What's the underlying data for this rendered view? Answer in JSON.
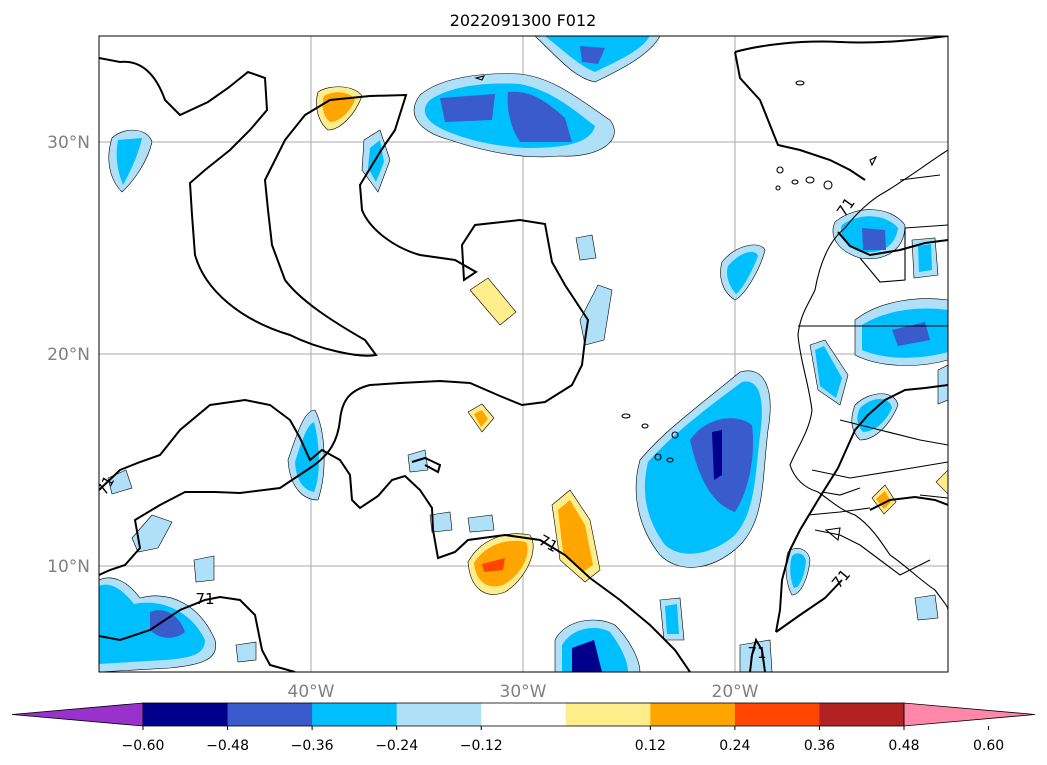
{
  "title": "2022091300 F012",
  "map": {
    "lon_range": [
      -50,
      -10
    ],
    "lat_range": [
      5,
      35
    ],
    "gridlines": true,
    "lat_ticks": [
      {
        "value": 30,
        "label": "30°N"
      },
      {
        "value": 20,
        "label": "20°N"
      },
      {
        "value": 10,
        "label": "10°N"
      }
    ],
    "lon_ticks": [
      {
        "value": -40,
        "label": "40°W"
      },
      {
        "value": -30,
        "label": "30°W"
      },
      {
        "value": -20,
        "label": "20°W"
      }
    ],
    "contour_label": "71"
  },
  "colorbar": {
    "extend": "both",
    "ticks": [
      "−0.60",
      "−0.48",
      "−0.36",
      "−0.24",
      "−0.12",
      "0.12",
      "0.24",
      "0.36",
      "0.48",
      "0.60"
    ],
    "colors": {
      "under": "#9932cc",
      "bins": [
        "#00008b",
        "#3a5bcc",
        "#00bfff",
        "#b0e0f8",
        "#ffffff",
        "#ffec8b",
        "#ffa500",
        "#ff4500",
        "#b22222"
      ],
      "over": "#ff88aa"
    }
  }
}
